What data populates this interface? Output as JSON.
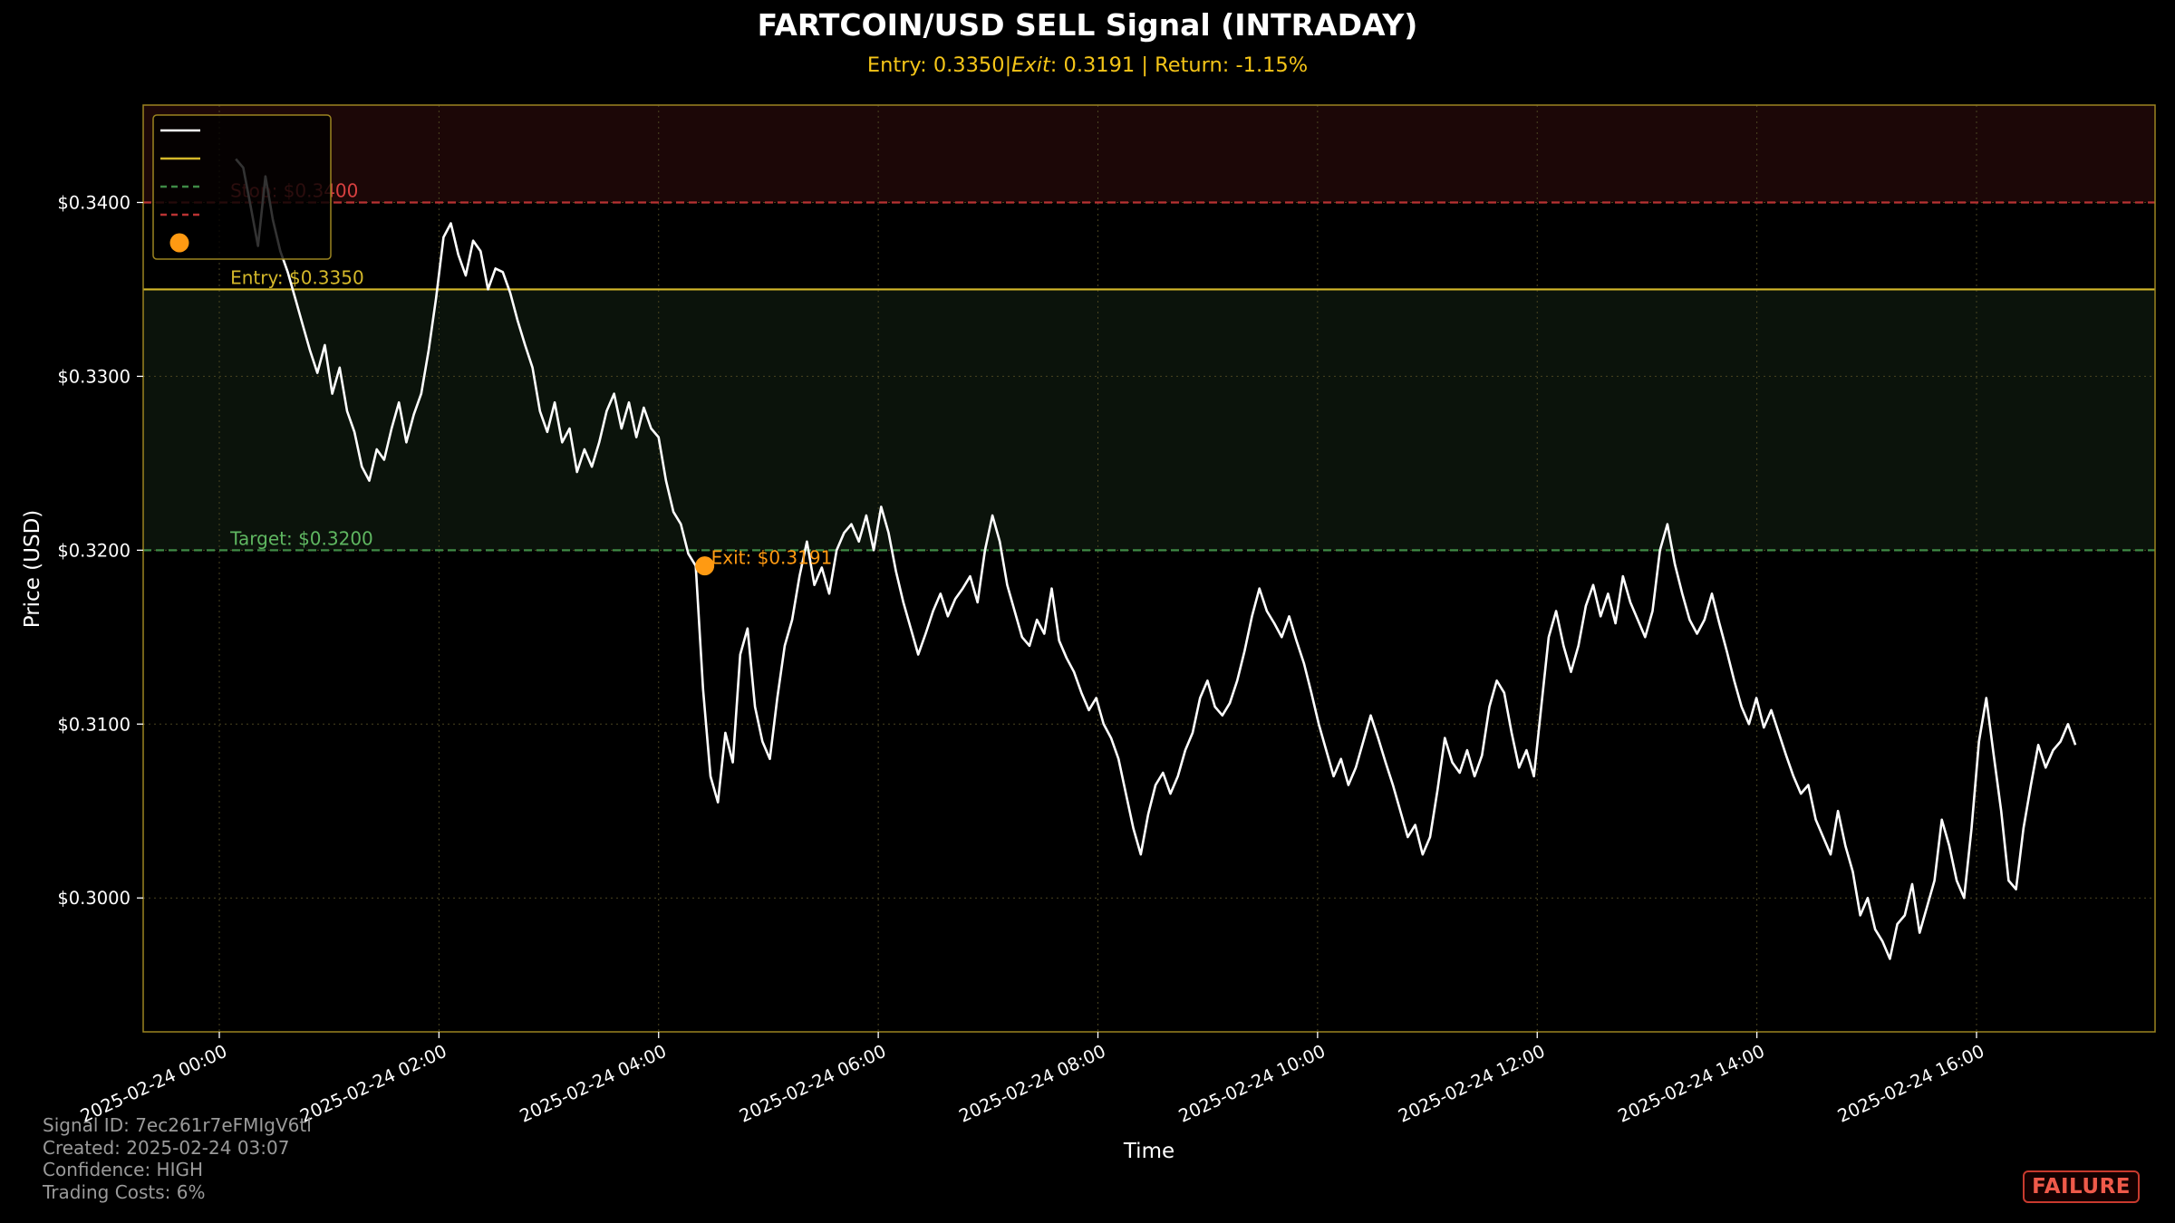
{
  "chart_data": {
    "type": "line",
    "title": "FARTCOIN/USD SELL Signal (INTRADAY)",
    "subtitle": "Entry: 0.3350|$Exit$: 0.3191 | Return: -1.15%",
    "xlabel": "Time",
    "ylabel": "Price (USD)",
    "ylim": [
      0.2923,
      0.3456
    ],
    "xlim_hours": [
      -0.35,
      17.2
    ],
    "grid": true,
    "legend_position": "top-left",
    "x_ticks": [
      "2025-02-24 00:00",
      "2025-02-24 02:00",
      "2025-02-24 04:00",
      "2025-02-24 06:00",
      "2025-02-24 08:00",
      "2025-02-24 10:00",
      "2025-02-24 12:00",
      "2025-02-24 14:00",
      "2025-02-24 16:00"
    ],
    "y_ticks": [
      "$0.3000",
      "$0.3100",
      "$0.3200",
      "$0.3300",
      "$0.3400"
    ],
    "y_tick_values": [
      0.3,
      0.31,
      0.32,
      0.33,
      0.34
    ],
    "price_series": {
      "x_start_hour": 0.15,
      "x_end_hour": 16.9,
      "values": [
        0.3425,
        0.342,
        0.3398,
        0.3375,
        0.3415,
        0.339,
        0.3372,
        0.336,
        0.3345,
        0.333,
        0.3315,
        0.3302,
        0.3318,
        0.329,
        0.3305,
        0.328,
        0.3268,
        0.3248,
        0.324,
        0.3258,
        0.3252,
        0.327,
        0.3285,
        0.3262,
        0.3278,
        0.329,
        0.3315,
        0.3345,
        0.338,
        0.3388,
        0.337,
        0.3358,
        0.3378,
        0.3372,
        0.335,
        0.3362,
        0.336,
        0.3348,
        0.3332,
        0.3318,
        0.3305,
        0.328,
        0.3268,
        0.3285,
        0.3262,
        0.327,
        0.3245,
        0.3258,
        0.3248,
        0.3262,
        0.328,
        0.329,
        0.327,
        0.3285,
        0.3265,
        0.3282,
        0.327,
        0.3265,
        0.324,
        0.3222,
        0.3215,
        0.3198,
        0.3191,
        0.312,
        0.307,
        0.3055,
        0.3095,
        0.3078,
        0.314,
        0.3155,
        0.311,
        0.309,
        0.308,
        0.3115,
        0.3145,
        0.316,
        0.3185,
        0.3205,
        0.318,
        0.319,
        0.3175,
        0.32,
        0.321,
        0.3215,
        0.3205,
        0.322,
        0.32,
        0.3225,
        0.321,
        0.3188,
        0.317,
        0.3155,
        0.314,
        0.3152,
        0.3165,
        0.3175,
        0.3162,
        0.3172,
        0.3178,
        0.3185,
        0.317,
        0.32,
        0.322,
        0.3205,
        0.318,
        0.3165,
        0.315,
        0.3145,
        0.316,
        0.3152,
        0.3178,
        0.3148,
        0.3138,
        0.313,
        0.3118,
        0.3108,
        0.3115,
        0.31,
        0.3092,
        0.308,
        0.306,
        0.304,
        0.3025,
        0.3048,
        0.3065,
        0.3072,
        0.306,
        0.307,
        0.3085,
        0.3095,
        0.3115,
        0.3125,
        0.311,
        0.3105,
        0.3112,
        0.3125,
        0.3142,
        0.3162,
        0.3178,
        0.3165,
        0.3158,
        0.315,
        0.3162,
        0.3148,
        0.3135,
        0.3118,
        0.31,
        0.3085,
        0.307,
        0.308,
        0.3065,
        0.3075,
        0.309,
        0.3105,
        0.3092,
        0.3078,
        0.3065,
        0.305,
        0.3035,
        0.3042,
        0.3025,
        0.3035,
        0.3062,
        0.3092,
        0.3078,
        0.3072,
        0.3085,
        0.307,
        0.3082,
        0.311,
        0.3125,
        0.3118,
        0.3095,
        0.3075,
        0.3085,
        0.307,
        0.311,
        0.315,
        0.3165,
        0.3145,
        0.313,
        0.3145,
        0.3168,
        0.318,
        0.3162,
        0.3175,
        0.3158,
        0.3185,
        0.317,
        0.316,
        0.315,
        0.3165,
        0.32,
        0.3215,
        0.3192,
        0.3175,
        0.316,
        0.3152,
        0.316,
        0.3175,
        0.3158,
        0.3142,
        0.3125,
        0.311,
        0.31,
        0.3115,
        0.3098,
        0.3108,
        0.3095,
        0.3082,
        0.307,
        0.306,
        0.3065,
        0.3045,
        0.3035,
        0.3025,
        0.305,
        0.303,
        0.3015,
        0.299,
        0.3,
        0.2982,
        0.2975,
        0.2965,
        0.2985,
        0.299,
        0.3008,
        0.298,
        0.2995,
        0.301,
        0.3045,
        0.303,
        0.301,
        0.3,
        0.304,
        0.309,
        0.3115,
        0.3082,
        0.305,
        0.301,
        0.3005,
        0.304,
        0.3065,
        0.3088,
        0.3075,
        0.3085,
        0.309,
        0.31,
        0.3088
      ]
    },
    "levels": [
      {
        "name": "Entry",
        "label": "Entry: $0.3350",
        "value": 0.335,
        "color": "#d4b82a",
        "style": "solid"
      },
      {
        "name": "Target",
        "label": "Target: $0.3200",
        "value": 0.32,
        "color": "#3f8a46",
        "style": "dashed"
      },
      {
        "name": "Stop",
        "label": "Stop: $0.3400",
        "value": 0.34,
        "color": "#b83232",
        "style": "dashed"
      }
    ],
    "exit_point": {
      "hour": 4.42,
      "value": 0.3191,
      "label": "Exit: $0.3191",
      "color": "#ff9a12"
    },
    "zones": [
      {
        "name": "loss-zone",
        "from": 0.34,
        "to": 0.3456,
        "color": "#1c0707"
      },
      {
        "name": "profit-zone",
        "from": 0.32,
        "to": 0.335,
        "color": "#0b130b"
      }
    ],
    "colors": {
      "price": "#ffffff",
      "title": "#ffffff",
      "subtitle": "#f5c518",
      "axes_frame": "#9b8420",
      "grid": "#4a4420"
    }
  },
  "info": {
    "signal_id": "Signal ID: 7ec261r7eFMIgV6tl",
    "created": "Created: 2025-02-24 03:07",
    "confidence": "Confidence: HIGH",
    "trading_costs": "Trading Costs: 6%"
  },
  "status_badge": "FAILURE"
}
